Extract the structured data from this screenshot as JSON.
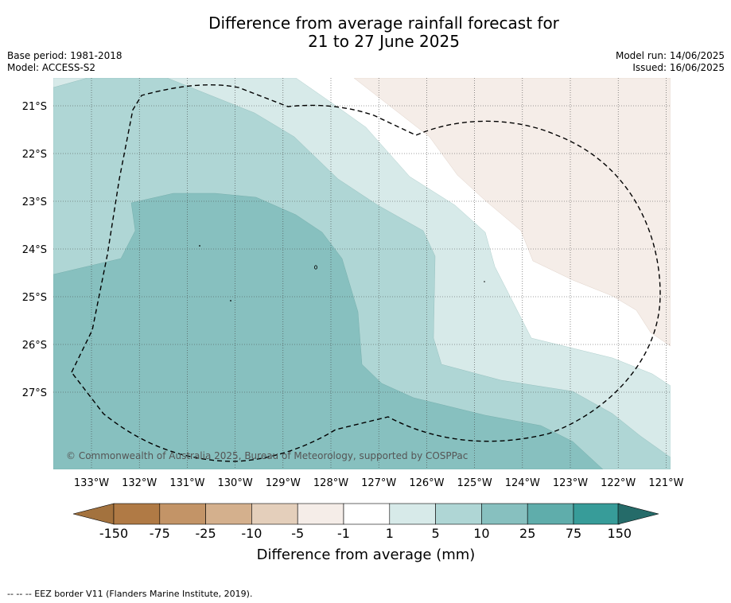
{
  "title_line1": "Difference from average rainfall forecast for",
  "title_line2": "21 to 27 June 2025",
  "base_period": "Base period: 1981-2018",
  "model": "Model: ACCESS-S2",
  "model_run": "Model run: 14/06/2025",
  "issued": "Issued: 16/06/2025",
  "copyright": "© Commonwealth of Australia 2025, Bureau of Meteorology, supported by COSPPac",
  "lat_ticks": [
    "21°S",
    "22°S",
    "23°S",
    "24°S",
    "25°S",
    "26°S",
    "27°S"
  ],
  "lon_ticks": [
    "133°W",
    "132°W",
    "131°W",
    "130°W",
    "129°W",
    "128°W",
    "127°W",
    "126°W",
    "125°W",
    "124°W",
    "123°W",
    "122°W",
    "121°W"
  ],
  "colorbar": {
    "title": "Difference from average (mm)",
    "labels": [
      "-150",
      "-75",
      "-25",
      "-10",
      "-5",
      "-1",
      "1",
      "5",
      "10",
      "25",
      "75",
      "150"
    ],
    "colors": [
      "#a3723e",
      "#b07a45",
      "#c39467",
      "#d4b08d",
      "#e4cfbb",
      "#f5ede8",
      "#ffffff",
      "#d7eae9",
      "#afd6d5",
      "#87c0bf",
      "#5fadab",
      "#379c99",
      "#256b69"
    ]
  },
  "footnote": "--  --  -- EEZ border V11 (Flanders Marine Institute, 2019)."
}
